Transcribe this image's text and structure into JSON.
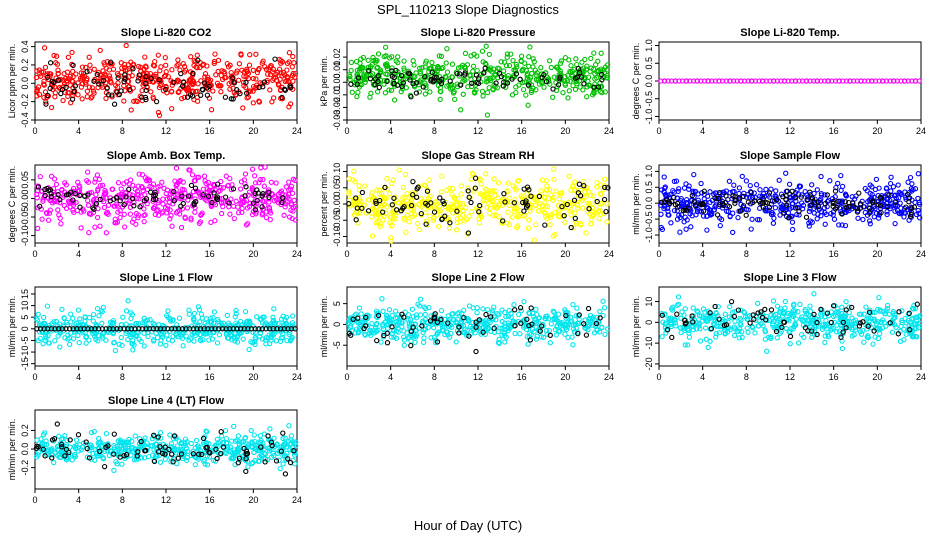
{
  "figure": {
    "title": "SPL_110213  Slope Diagnostics",
    "xlabel": "Hour of Day (UTC)"
  },
  "chart_data": [
    {
      "type": "scatter",
      "title": "Slope Li-820 CO2",
      "ylabel": "Licor ppm per min.",
      "xlim": [
        0,
        24
      ],
      "ylim": [
        -0.4,
        0.45
      ],
      "xticks": [
        0,
        4,
        8,
        12,
        16,
        20,
        24
      ],
      "yticks": [
        -0.4,
        -0.2,
        0.0,
        0.2,
        0.4
      ],
      "ytick_labels": [
        "-0.4",
        "-0.2",
        "0.0",
        "0.2",
        "0.4"
      ],
      "series": [
        {
          "color": "#ff0000",
          "n": 480,
          "center": 0.05,
          "spread": 0.13,
          "clip": [
            -0.38,
            0.45
          ]
        },
        {
          "color": "#000000",
          "n": 80,
          "center": -0.02,
          "spread": 0.1,
          "clip": [
            -0.35,
            0.3
          ]
        }
      ]
    },
    {
      "type": "scatter",
      "title": "Slope Li-820 Pressure",
      "ylabel": "kPa per min.",
      "xlim": [
        0,
        24
      ],
      "ylim": [
        -0.03,
        0.032
      ],
      "xticks": [
        0,
        4,
        8,
        12,
        16,
        20,
        24
      ],
      "yticks": [
        -0.03,
        -0.02,
        -0.01,
        0.0,
        0.01,
        0.02
      ],
      "ytick_labels": [
        "-0.03",
        "-0.02",
        "-0.01",
        "0.00",
        "0.01",
        "0.02"
      ],
      "series": [
        {
          "color": "#00c000",
          "n": 480,
          "center": 0.005,
          "spread": 0.009,
          "clip": [
            -0.03,
            0.03
          ]
        },
        {
          "color": "#000000",
          "n": 80,
          "center": 0.002,
          "spread": 0.004,
          "clip": [
            -0.02,
            0.02
          ]
        }
      ]
    },
    {
      "type": "scatter",
      "title": "Slope Li-820 Temp.",
      "ylabel": "degrees C per min.",
      "xlim": [
        0,
        24
      ],
      "ylim": [
        -1.1,
        1.1
      ],
      "xticks": [
        0,
        4,
        8,
        12,
        16,
        20,
        24
      ],
      "yticks": [
        -1.0,
        -0.5,
        0.0,
        0.5,
        1.0
      ],
      "ytick_labels": [
        "-1.0",
        "-0.5",
        "0.0",
        "0.5",
        "1.0"
      ],
      "series": [
        {
          "color": "#000000",
          "n": 24,
          "center": 0.0,
          "spread": 0.0,
          "clip": [
            -0.01,
            0.01
          ],
          "regular": true
        },
        {
          "color": "#ff00ff",
          "n": 72,
          "center": 0.0,
          "spread": 0.0,
          "clip": [
            -0.01,
            0.01
          ],
          "regular": true
        }
      ]
    },
    {
      "type": "scatter",
      "title": "Slope Amb. Box Temp.",
      "ylabel": "degrees C per min.",
      "xlim": [
        0,
        24
      ],
      "ylim": [
        -0.12,
        0.09
      ],
      "xticks": [
        0,
        4,
        8,
        12,
        16,
        20,
        24
      ],
      "yticks": [
        -0.1,
        -0.05,
        0.0,
        0.05
      ],
      "ytick_labels": [
        "-0.10",
        "-0.05",
        "0.00",
        "0.05"
      ],
      "series": [
        {
          "color": "#ff00ff",
          "n": 480,
          "center": 0.0,
          "spread": 0.035,
          "clip": [
            -0.115,
            0.085
          ]
        },
        {
          "color": "#000000",
          "n": 80,
          "center": 0.0,
          "spread": 0.015,
          "clip": [
            -0.05,
            0.05
          ]
        }
      ]
    },
    {
      "type": "scatter",
      "title": "Slope Gas Stream RH",
      "ylabel": "percent per min.",
      "xlim": [
        0,
        24
      ],
      "ylim": [
        -0.12,
        0.12
      ],
      "xticks": [
        0,
        4,
        8,
        12,
        16,
        20,
        24
      ],
      "yticks": [
        -0.1,
        -0.05,
        0.0,
        0.05,
        0.1
      ],
      "ytick_labels": [
        "-0.10",
        "-0.05",
        "0.00",
        "0.05",
        "0.10"
      ],
      "series": [
        {
          "color": "#ffff00",
          "n": 480,
          "center": 0.0,
          "spread": 0.04,
          "clip": [
            -0.115,
            0.115
          ]
        },
        {
          "color": "#000000",
          "n": 80,
          "center": 0.0,
          "spread": 0.035,
          "clip": [
            -0.09,
            0.1
          ]
        }
      ]
    },
    {
      "type": "scatter",
      "title": "Slope Sample Flow",
      "ylabel": "ml/min per min.",
      "xlim": [
        0,
        24
      ],
      "ylim": [
        -1.25,
        1.2
      ],
      "xticks": [
        0,
        4,
        8,
        12,
        16,
        20,
        24
      ],
      "yticks": [
        -1.0,
        -0.5,
        0.0,
        0.5,
        1.0
      ],
      "ytick_labels": [
        "-1.0",
        "-0.5",
        "0.0",
        "0.5",
        "1.0"
      ],
      "series": [
        {
          "color": "#0000ff",
          "n": 480,
          "center": 0.0,
          "spread": 0.35,
          "clip": [
            -1.2,
            1.15
          ]
        },
        {
          "color": "#000000",
          "n": 120,
          "center": 0.0,
          "spread": 0.2,
          "clip": [
            -0.6,
            0.6
          ]
        }
      ]
    },
    {
      "type": "scatter",
      "title": "Slope Line 1 Flow",
      "ylabel": "ml/min per min.",
      "xlim": [
        0,
        24
      ],
      "ylim": [
        -16,
        18
      ],
      "xticks": [
        0,
        4,
        8,
        12,
        16,
        20,
        24
      ],
      "yticks": [
        -15,
        -10,
        -5,
        0,
        5,
        10,
        15
      ],
      "ytick_labels": [
        "-15",
        "-10",
        "-5",
        "0",
        "5",
        "10",
        "15"
      ],
      "series": [
        {
          "color": "#00e5ee",
          "n": 480,
          "center": 0.0,
          "spread": 3.5,
          "clip": [
            -15,
            17
          ]
        },
        {
          "color": "#000000",
          "n": 72,
          "center": 0.0,
          "spread": 0.0,
          "clip": [
            -0.3,
            0.3
          ],
          "regular": true
        }
      ]
    },
    {
      "type": "scatter",
      "title": "Slope Line 2 Flow",
      "ylabel": "ml/min per min.",
      "xlim": [
        0,
        24
      ],
      "ylim": [
        -10,
        9
      ],
      "xticks": [
        0,
        4,
        8,
        12,
        16,
        20,
        24
      ],
      "yticks": [
        -5,
        0,
        5
      ],
      "ytick_labels": [
        "-5",
        "0",
        "5"
      ],
      "series": [
        {
          "color": "#00e5ee",
          "n": 480,
          "center": 0.0,
          "spread": 2.0,
          "clip": [
            -9.5,
            8.5
          ]
        },
        {
          "color": "#000000",
          "n": 60,
          "center": 0.0,
          "spread": 2.5,
          "clip": [
            -7,
            7
          ]
        }
      ]
    },
    {
      "type": "scatter",
      "title": "Slope Line 3 Flow",
      "ylabel": "ml/min per min.",
      "xlim": [
        0,
        24
      ],
      "ylim": [
        -21,
        17
      ],
      "xticks": [
        0,
        4,
        8,
        12,
        16,
        20,
        24
      ],
      "yticks": [
        -20,
        -10,
        0,
        10
      ],
      "ytick_labels": [
        "-20",
        "-10",
        "0",
        "10"
      ],
      "series": [
        {
          "color": "#00e5ee",
          "n": 480,
          "center": 0.0,
          "spread": 4.5,
          "clip": [
            -20,
            16
          ]
        },
        {
          "color": "#000000",
          "n": 60,
          "center": 0.0,
          "spread": 4.5,
          "clip": [
            -20,
            15
          ]
        }
      ]
    },
    {
      "type": "scatter",
      "title": "Slope Line 4 (LT) Flow",
      "ylabel": "ml/min per min.",
      "xlim": [
        0,
        24
      ],
      "ylim": [
        -0.43,
        0.42
      ],
      "xticks": [
        0,
        4,
        8,
        12,
        16,
        20,
        24
      ],
      "yticks": [
        -0.2,
        0.0,
        0.2
      ],
      "ytick_labels": [
        "-0.2",
        "0.0",
        "0.2"
      ],
      "series": [
        {
          "color": "#00e5ee",
          "n": 480,
          "center": 0.0,
          "spread": 0.08,
          "clip": [
            -0.4,
            0.35
          ]
        },
        {
          "color": "#000000",
          "n": 80,
          "center": 0.0,
          "spread": 0.09,
          "clip": [
            -0.3,
            0.38
          ]
        }
      ]
    }
  ]
}
